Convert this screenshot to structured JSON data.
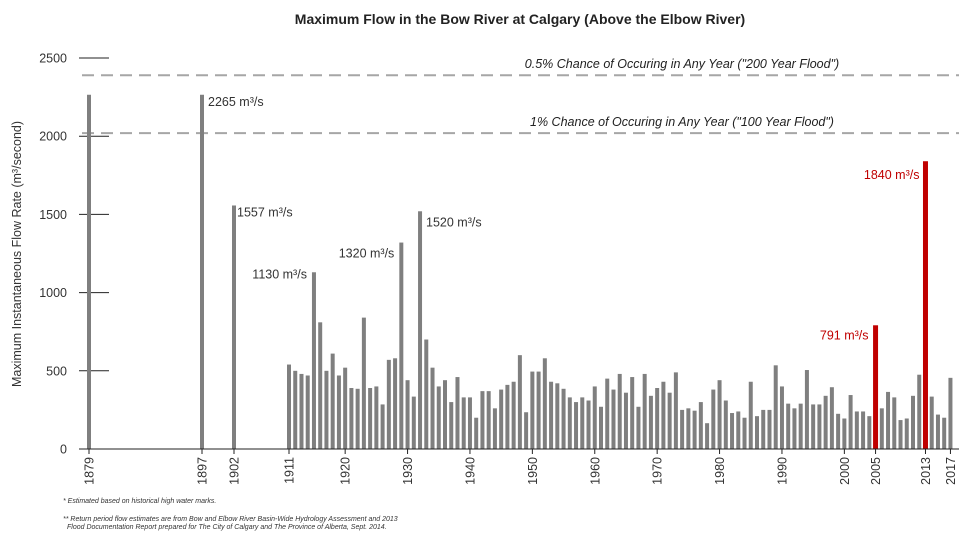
{
  "chart_data": {
    "type": "bar",
    "title": "Maximum Flow in the Bow River at Calgary (Above the Elbow River)",
    "ylabel": "Maximum Instantaneous Flow Rate (m³/second)",
    "xlabel": "",
    "ylim": [
      0,
      2500
    ],
    "yticks": [
      0,
      500,
      1000,
      1500,
      2000,
      2500
    ],
    "xticks": [
      1879,
      1897,
      1902,
      1911,
      1920,
      1930,
      1940,
      1950,
      1960,
      1970,
      1980,
      1990,
      2000,
      2005,
      2013,
      2017
    ],
    "grid": false,
    "colors": {
      "normal": "#7f7f7f",
      "highlight": "#c00000",
      "reference": "#a6a6a6"
    },
    "reference_lines": [
      {
        "value": 2390,
        "label": "0.5% Chance of Occuring in Any Year (\"200 Year Flood\")"
      },
      {
        "value": 2020,
        "label": "1% Chance of Occuring  in Any Year (\"100 Year Flood\")"
      }
    ],
    "series": [
      {
        "name": "Maximum instantaneous flow",
        "points": [
          [
            1879,
            2265
          ],
          [
            1897,
            2265
          ],
          [
            1902,
            1557
          ],
          [
            1911,
            540
          ],
          [
            1912,
            500
          ],
          [
            1913,
            480
          ],
          [
            1914,
            470
          ],
          [
            1915,
            1130
          ],
          [
            1916,
            810
          ],
          [
            1917,
            500
          ],
          [
            1918,
            610
          ],
          [
            1919,
            470
          ],
          [
            1920,
            520
          ],
          [
            1921,
            390
          ],
          [
            1922,
            385
          ],
          [
            1923,
            840
          ],
          [
            1924,
            390
          ],
          [
            1925,
            400
          ],
          [
            1926,
            285
          ],
          [
            1927,
            570
          ],
          [
            1928,
            580
          ],
          [
            1929,
            1320
          ],
          [
            1930,
            440
          ],
          [
            1931,
            335
          ],
          [
            1932,
            1520
          ],
          [
            1933,
            700
          ],
          [
            1934,
            520
          ],
          [
            1935,
            400
          ],
          [
            1936,
            440
          ],
          [
            1937,
            300
          ],
          [
            1938,
            460
          ],
          [
            1939,
            330
          ],
          [
            1940,
            330
          ],
          [
            1941,
            200
          ],
          [
            1942,
            370
          ],
          [
            1943,
            370
          ],
          [
            1944,
            260
          ],
          [
            1945,
            380
          ],
          [
            1946,
            410
          ],
          [
            1947,
            430
          ],
          [
            1948,
            600
          ],
          [
            1949,
            235
          ],
          [
            1950,
            495
          ],
          [
            1951,
            495
          ],
          [
            1952,
            580
          ],
          [
            1953,
            430
          ],
          [
            1954,
            420
          ],
          [
            1955,
            385
          ],
          [
            1956,
            330
          ],
          [
            1957,
            300
          ],
          [
            1958,
            330
          ],
          [
            1959,
            310
          ],
          [
            1960,
            400
          ],
          [
            1961,
            270
          ],
          [
            1962,
            450
          ],
          [
            1963,
            380
          ],
          [
            1964,
            480
          ],
          [
            1965,
            360
          ],
          [
            1966,
            460
          ],
          [
            1967,
            270
          ],
          [
            1968,
            480
          ],
          [
            1969,
            340
          ],
          [
            1970,
            390
          ],
          [
            1971,
            430
          ],
          [
            1972,
            360
          ],
          [
            1973,
            490
          ],
          [
            1974,
            250
          ],
          [
            1975,
            260
          ],
          [
            1976,
            245
          ],
          [
            1977,
            300
          ],
          [
            1978,
            165
          ],
          [
            1979,
            380
          ],
          [
            1980,
            440
          ],
          [
            1981,
            310
          ],
          [
            1982,
            230
          ],
          [
            1983,
            240
          ],
          [
            1984,
            200
          ],
          [
            1985,
            430
          ],
          [
            1986,
            210
          ],
          [
            1987,
            250
          ],
          [
            1988,
            250
          ],
          [
            1989,
            535
          ],
          [
            1990,
            400
          ],
          [
            1991,
            290
          ],
          [
            1992,
            260
          ],
          [
            1993,
            290
          ],
          [
            1994,
            505
          ],
          [
            1995,
            285
          ],
          [
            1996,
            285
          ],
          [
            1997,
            340
          ],
          [
            1998,
            395
          ],
          [
            1999,
            225
          ],
          [
            2000,
            195
          ],
          [
            2001,
            345
          ],
          [
            2002,
            240
          ],
          [
            2003,
            240
          ],
          [
            2004,
            210
          ],
          [
            2005,
            791
          ],
          [
            2006,
            260
          ],
          [
            2007,
            365
          ],
          [
            2008,
            330
          ],
          [
            2009,
            185
          ],
          [
            2010,
            195
          ],
          [
            2011,
            340
          ],
          [
            2012,
            475
          ],
          [
            2013,
            1840
          ],
          [
            2014,
            335
          ],
          [
            2015,
            220
          ],
          [
            2016,
            200
          ],
          [
            2017,
            455
          ]
        ],
        "highlight_years": [
          2005,
          2013
        ]
      }
    ],
    "annotations": [
      {
        "year": 1897,
        "text": "2265 m³/s",
        "color": "normal"
      },
      {
        "year": 1902,
        "text": "1557 m³/s",
        "color": "normal"
      },
      {
        "year": 1915,
        "text": "1130 m³/s",
        "color": "normal"
      },
      {
        "year": 1929,
        "text": "1320 m³/s",
        "color": "normal"
      },
      {
        "year": 1932,
        "text": "1520 m³/s",
        "color": "normal"
      },
      {
        "year": 2005,
        "text": "791 m³/s",
        "color": "highlight"
      },
      {
        "year": 2013,
        "text": "1840 m³/s",
        "color": "highlight"
      }
    ]
  },
  "footnotes": {
    "note1": "*  Estimated based on historical high water marks.",
    "note2_line1": "**  Return period flow estimates are from Bow and Elbow River Basin-Wide Hydrology Assessment and 2013",
    "note2_line2": "Flood Documentation Report prepared for The City of Calgary and The Province of Alberta, Sept. 2014."
  }
}
